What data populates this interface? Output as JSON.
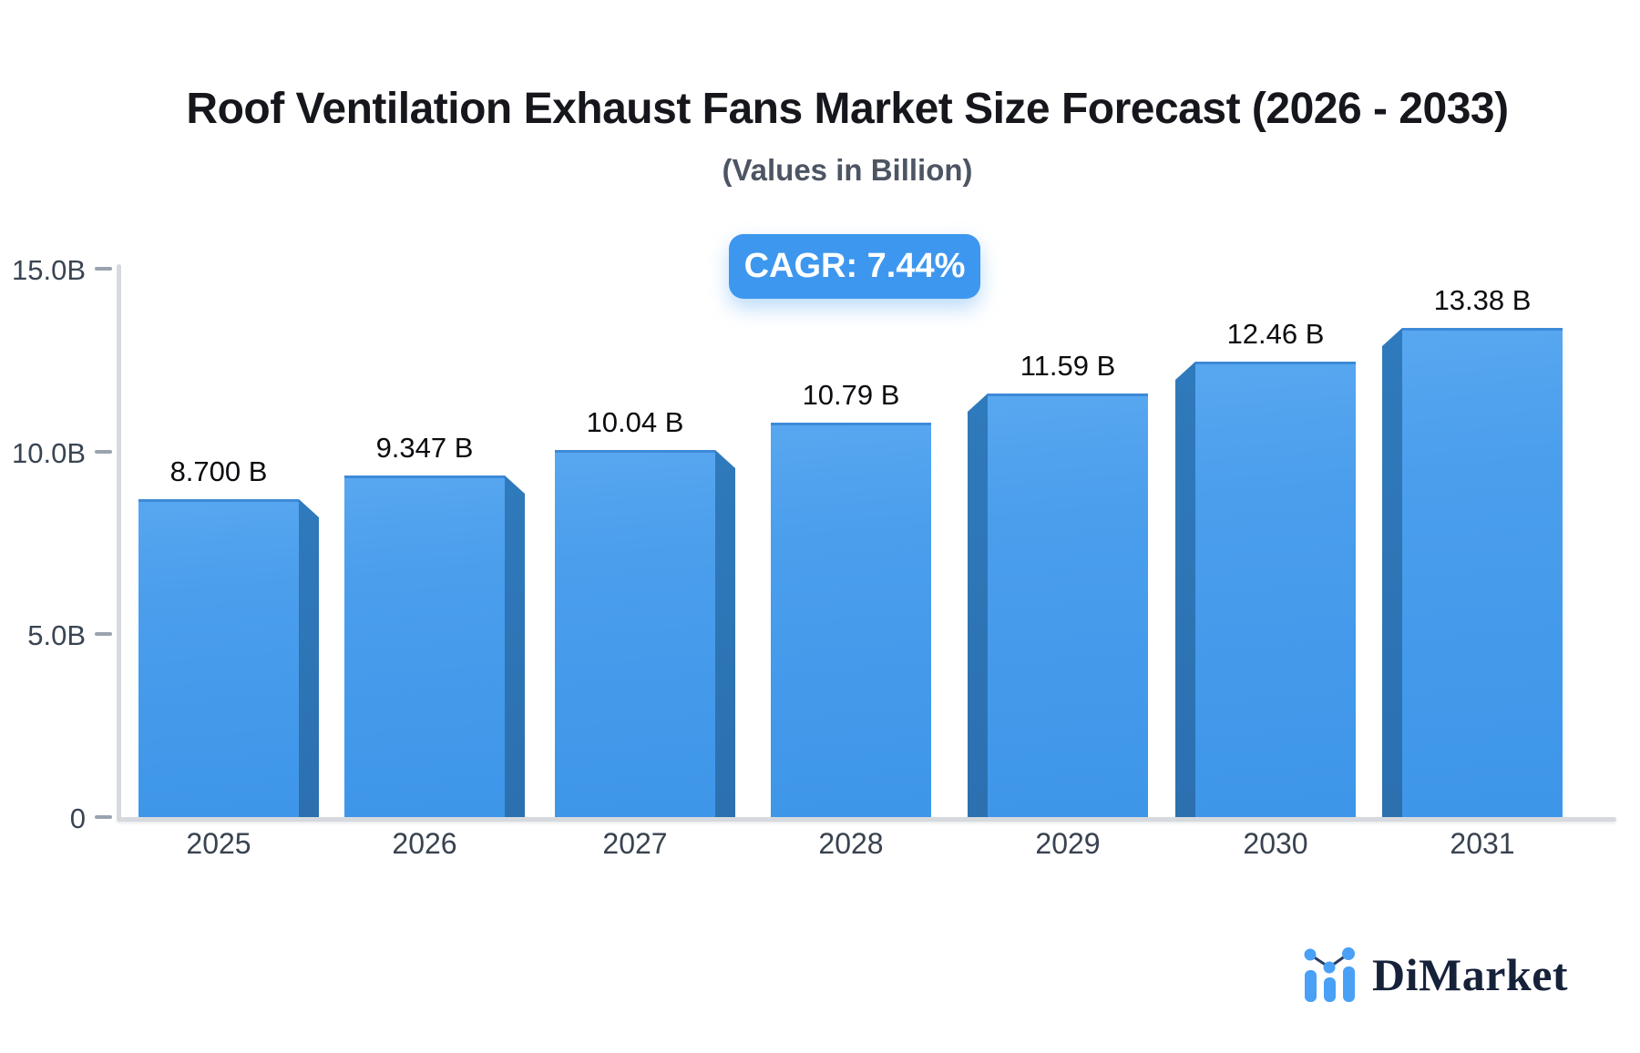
{
  "header": {
    "title": "Roof Ventilation Exhaust Fans Market Size Forecast (2026 - 2033)",
    "subtitle": "(Values in Billion)"
  },
  "cagr_badge": {
    "label": "CAGR: 7.44%",
    "color": "#3e97ee"
  },
  "chart_data": {
    "type": "bar",
    "title": "Roof Ventilation Exhaust Fans Market Size Forecast (2026 - 2033)",
    "subtitle": "(Values in Billion)",
    "categories": [
      "2025",
      "2026",
      "2027",
      "2028",
      "2029",
      "2030",
      "2031"
    ],
    "values": [
      8.7,
      9.347,
      10.04,
      10.79,
      11.59,
      12.46,
      13.38
    ],
    "value_labels": [
      "8.700 B",
      "9.347 B",
      "10.04 B",
      "10.79 B",
      "11.59 B",
      "12.46 B",
      "13.38 B"
    ],
    "xlabel": "",
    "ylabel": "",
    "ylim": [
      0,
      15
    ],
    "yticks": [
      "15.0B",
      "10.0B",
      "5.0B",
      "0"
    ],
    "ytick_values": [
      15,
      10,
      5,
      0
    ],
    "grid": false,
    "legend": "none",
    "annotation": "CAGR: 7.44%",
    "bar_face_color_top": "#58a7f0",
    "bar_face_color_bottom": "#3e96e9",
    "bar_side_color": "#2d74b4",
    "axis_color": "#d6dade"
  },
  "footer": {
    "brand": "DiMarket",
    "brand_navy": "#16213a",
    "brand_blue": "#4aa0f5"
  }
}
